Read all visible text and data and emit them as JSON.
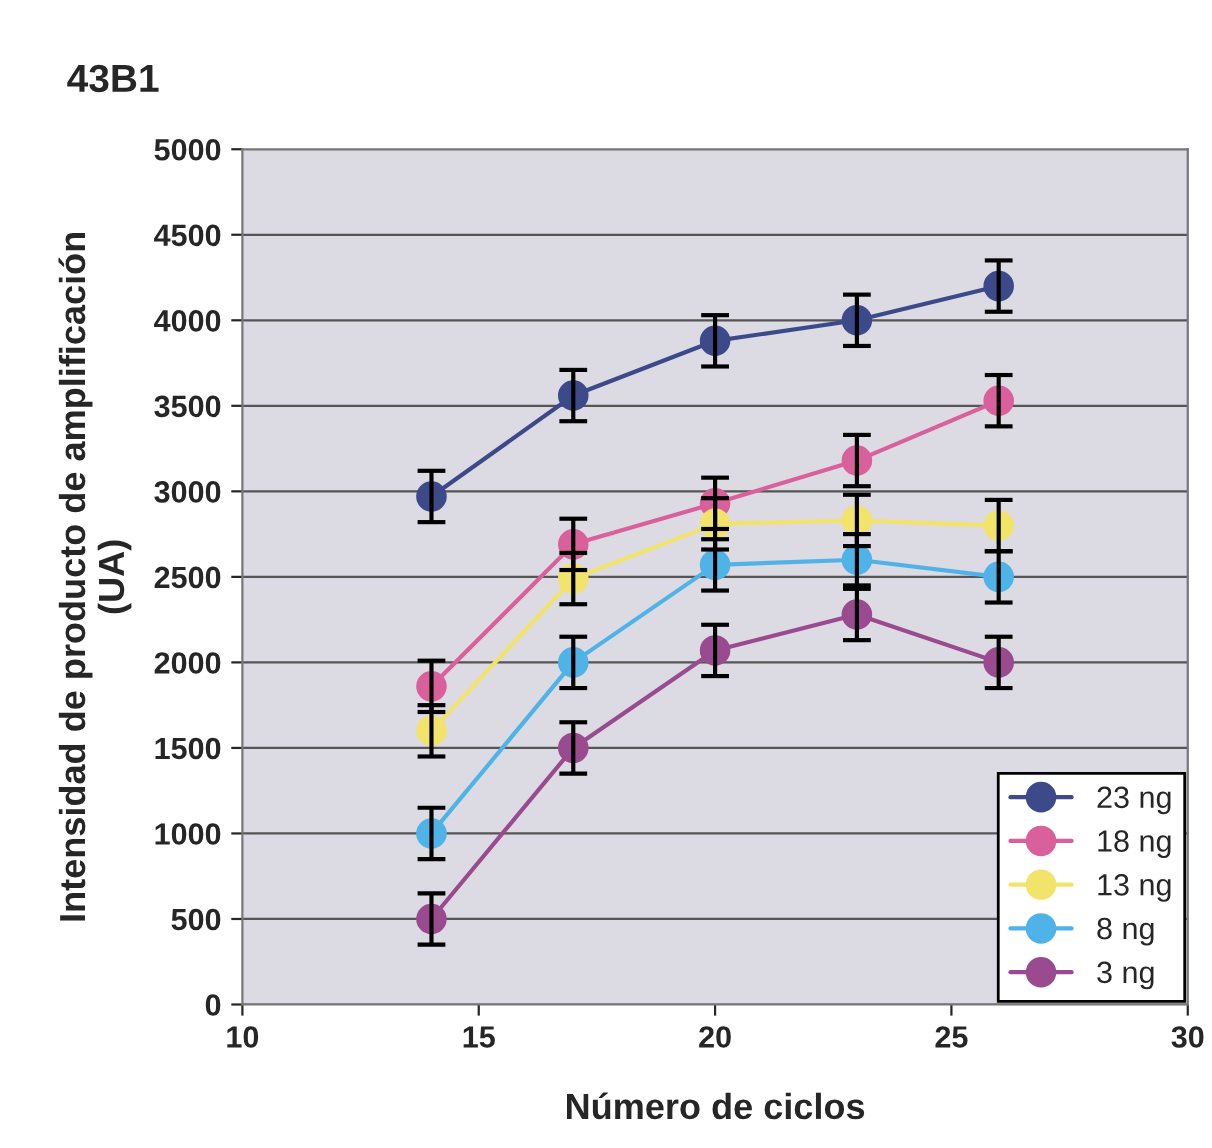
{
  "chart_data": {
    "type": "line",
    "title": "43B1",
    "xlabel": "Número de ciclos",
    "ylabel": "Intensidad de producto de amplificación\n(UA)",
    "x": [
      14,
      17,
      20,
      23,
      26
    ],
    "xlim": [
      10,
      30
    ],
    "xticks": [
      10,
      15,
      20,
      25,
      30
    ],
    "ylim": [
      0,
      5000
    ],
    "yticks": [
      0,
      500,
      1000,
      1500,
      2000,
      2500,
      3000,
      3500,
      4000,
      4500,
      5000
    ],
    "grid": "y",
    "legend": "bottom right",
    "marker": "circle",
    "line_style": "solid",
    "series": [
      {
        "name": "23 ng",
        "color": "#3d4a8a",
        "values": [
          2970,
          3560,
          3880,
          4000,
          4200
        ],
        "errors": [
          150,
          150,
          150,
          150,
          150
        ]
      },
      {
        "name": "18 ng",
        "color": "#d9609a",
        "values": [
          1860,
          2690,
          2930,
          3180,
          3530
        ],
        "errors": [
          150,
          150,
          150,
          150,
          150
        ]
      },
      {
        "name": "13 ng",
        "color": "#f2e36b",
        "values": [
          1600,
          2490,
          2810,
          2830,
          2800
        ],
        "errors": [
          150,
          150,
          150,
          150,
          150
        ]
      },
      {
        "name": "8 ng",
        "color": "#4fb3e8",
        "values": [
          1000,
          2000,
          2570,
          2600,
          2500
        ],
        "errors": [
          150,
          150,
          150,
          150,
          150
        ]
      },
      {
        "name": "3 ng",
        "color": "#9a4a8e",
        "values": [
          500,
          1500,
          2070,
          2280,
          2000
        ],
        "errors": [
          150,
          150,
          150,
          150,
          150
        ]
      }
    ]
  }
}
